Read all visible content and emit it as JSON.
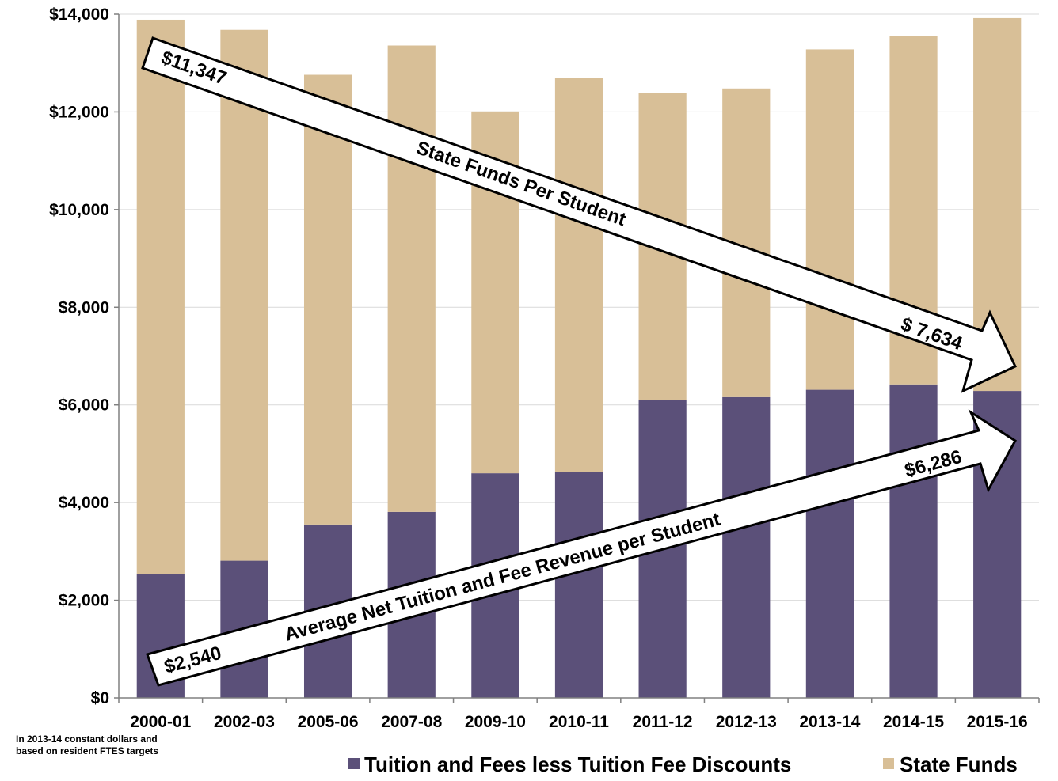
{
  "colors": {
    "tuition": "#5b5079",
    "state": "#d8bf97",
    "grid": "#d9d9d9",
    "axis": "#808080",
    "arrow_fill": "#ffffff",
    "arrow_stroke": "#000000"
  },
  "note": {
    "line1": "In 2013-14 constant dollars and",
    "line2": "based on resident  FTES targets"
  },
  "annotations": {
    "state_start": "$11,347",
    "state_end": "$ 7,634",
    "state_label": "State Funds Per Student",
    "tuition_start": "$2,540",
    "tuition_end": "$6,286",
    "tuition_label": "Average Net Tuition and Fee Revenue per Student"
  },
  "chart_data": {
    "type": "bar",
    "stacked": true,
    "categories": [
      "2000-01",
      "2002-03",
      "2005-06",
      "2007-08",
      "2009-10",
      "2010-11",
      "2011-12",
      "2012-13",
      "2013-14",
      "2014-15",
      "2015-16"
    ],
    "series": [
      {
        "name": "Tuition and Fees less Tuition Fee Discounts",
        "color": "#5b5079",
        "values": [
          2540,
          2810,
          3550,
          3810,
          4600,
          4630,
          6100,
          6160,
          6310,
          6420,
          6286
        ]
      },
      {
        "name": "State Funds",
        "color": "#d8bf97",
        "values": [
          11347,
          10870,
          9210,
          9550,
          7410,
          8070,
          6280,
          6320,
          6970,
          7140,
          7634
        ]
      }
    ],
    "ylim": [
      0,
      14000
    ],
    "yticks": [
      0,
      2000,
      4000,
      6000,
      8000,
      10000,
      12000,
      14000
    ],
    "ytick_labels": [
      "$0",
      "$2,000",
      "$4,000",
      "$6,000",
      "$8,000",
      "$10,000",
      "$12,000",
      "$14,000"
    ],
    "grid": true,
    "legend_position": "bottom",
    "title": "",
    "xlabel": "",
    "ylabel": ""
  }
}
